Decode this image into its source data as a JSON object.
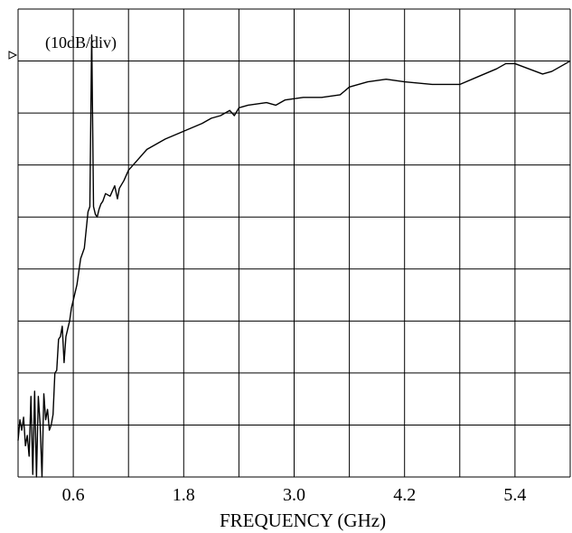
{
  "chart_data": {
    "type": "line",
    "title": "",
    "scale_annotation": "(10dB/div)",
    "xlabel": "FREQUENCY  (GHz)",
    "ylabel": "",
    "xlim": [
      0.0,
      6.0
    ],
    "ylim": [
      -90,
      0
    ],
    "grid": true,
    "x_ticks": [
      {
        "value": 0.6,
        "label": "0.6"
      },
      {
        "value": 1.8,
        "label": "1.8"
      },
      {
        "value": 3.0,
        "label": "3.0"
      },
      {
        "value": 4.2,
        "label": "4.2"
      },
      {
        "value": 5.4,
        "label": "5.4"
      }
    ],
    "x_divisions": 10,
    "y_divisions": 9,
    "reference_level": 0,
    "series": [
      {
        "x": [
          0.0,
          0.02,
          0.04,
          0.06,
          0.08,
          0.1,
          0.12,
          0.14,
          0.16,
          0.18,
          0.2,
          0.22,
          0.24,
          0.26,
          0.28,
          0.3,
          0.32,
          0.34,
          0.36,
          0.38,
          0.4,
          0.42,
          0.44,
          0.46,
          0.48,
          0.5,
          0.52,
          0.54,
          0.56,
          0.58,
          0.6,
          0.64,
          0.68,
          0.72,
          0.76,
          0.78,
          0.8,
          0.82,
          0.84,
          0.86,
          0.88,
          0.9,
          0.92,
          0.95,
          1.0,
          1.05,
          1.08,
          1.1,
          1.15,
          1.2,
          1.3,
          1.4,
          1.6,
          1.8,
          2.0,
          2.1,
          2.2,
          2.3,
          2.35,
          2.4,
          2.5,
          2.7,
          2.8,
          2.9,
          3.1,
          3.3,
          3.5,
          3.6,
          3.7,
          3.8,
          4.0,
          4.2,
          4.5,
          4.8,
          5.0,
          5.2,
          5.3,
          5.4,
          5.55,
          5.7,
          5.8,
          5.9,
          6.0
        ],
        "y": [
          -83.0,
          -79.0,
          -81.0,
          -78.5,
          -84.0,
          -82.0,
          -86.0,
          -74.5,
          -89.5,
          -73.5,
          -90.0,
          -74.5,
          -80.0,
          -90.0,
          -74.0,
          -79.0,
          -77.0,
          -81.0,
          -80.0,
          -78.0,
          -70.0,
          -69.5,
          -63.5,
          -63.0,
          -61.0,
          -68.0,
          -63.0,
          -61.5,
          -60.0,
          -57.5,
          -56.0,
          -53.0,
          -48.0,
          -46.0,
          -39.0,
          -38.0,
          -5.0,
          -38.0,
          -39.5,
          -40.0,
          -38.5,
          -37.5,
          -37.0,
          -35.5,
          -36.0,
          -34.0,
          -36.5,
          -34.5,
          -33.0,
          -31.0,
          -29.0,
          -27.0,
          -25.0,
          -23.5,
          -22.0,
          -21.0,
          -20.5,
          -19.5,
          -20.5,
          -19.0,
          -18.5,
          -18.0,
          -18.5,
          -17.5,
          -17.0,
          -17.0,
          -16.5,
          -15.0,
          -14.5,
          -14.0,
          -13.5,
          -14.0,
          -14.5,
          -14.5,
          -13.0,
          -11.5,
          -10.5,
          -10.5,
          -11.5,
          -12.5,
          -12.0,
          -11.0,
          -10.0
        ]
      }
    ]
  }
}
